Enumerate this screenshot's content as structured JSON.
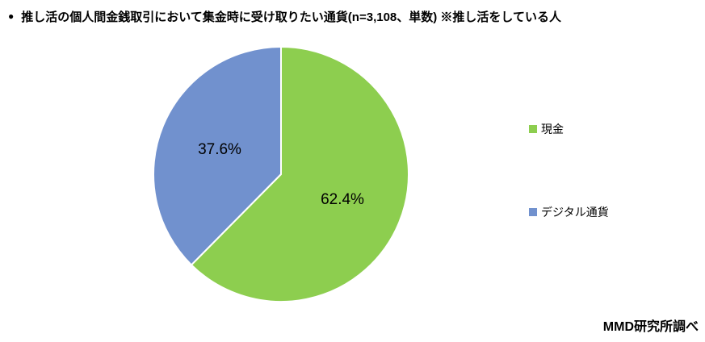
{
  "header": {
    "bullet": "●",
    "title": "推し活の個人間金銭取引において集金時に受け取りたい通貨(n=3,108、単数) ※推し活をしている人"
  },
  "chart_data": {
    "type": "pie",
    "title": "推し活の個人間金銭取引において集金時に受け取りたい通貨(n=3,108、単数) ※推し活をしている人",
    "categories": [
      "現金",
      "デジタル通貨"
    ],
    "values": [
      62.4,
      37.6
    ],
    "data_labels": [
      "62.4%",
      "37.6%"
    ],
    "colors": [
      "#8DCE4F",
      "#7191CE"
    ],
    "slice_names": [
      "cash",
      "digital-currency"
    ],
    "start_angle": 0,
    "direction": "clockwise",
    "legend_position": "right",
    "slice_border_color": "#FFFFFF",
    "label_color": "#000000"
  },
  "source": "MMD研究所調べ"
}
